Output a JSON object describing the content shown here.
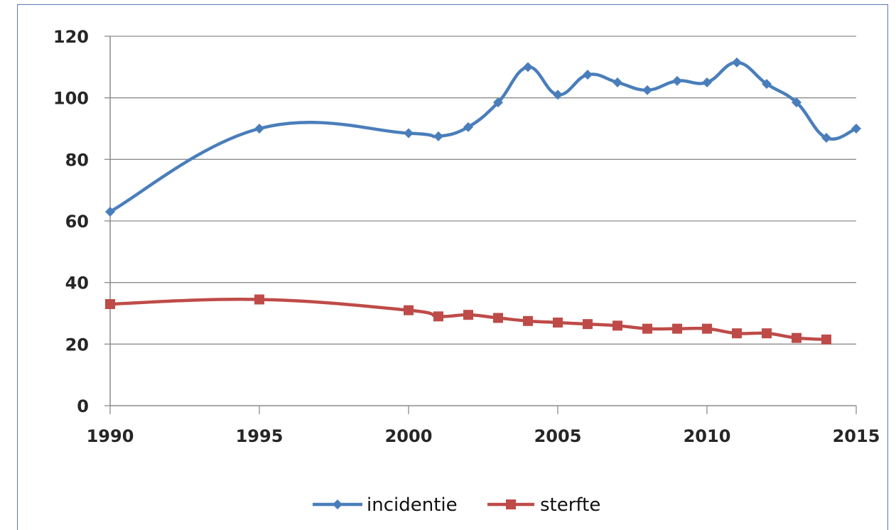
{
  "chart_data": {
    "type": "line",
    "title": "",
    "xlabel": "",
    "ylabel": "",
    "xlim": [
      1990,
      2015
    ],
    "ylim": [
      0,
      120
    ],
    "x_ticks": [
      "1990",
      "1995",
      "2000",
      "2005",
      "2010",
      "2015"
    ],
    "y_ticks": [
      "0",
      "20",
      "40",
      "60",
      "80",
      "100",
      "120"
    ],
    "grid": "horizontal",
    "legend_position": "bottom",
    "smooth": true,
    "series": [
      {
        "name": "incidentie",
        "color": "#4a7ebb",
        "marker": "diamond",
        "points": [
          {
            "x": 1990,
            "y": 63
          },
          {
            "x": 1995,
            "y": 90
          },
          {
            "x": 2000,
            "y": 88.5
          },
          {
            "x": 2001,
            "y": 87.5
          },
          {
            "x": 2002,
            "y": 90.5
          },
          {
            "x": 2003,
            "y": 98.5
          },
          {
            "x": 2004,
            "y": 110
          },
          {
            "x": 2005,
            "y": 101
          },
          {
            "x": 2006,
            "y": 107.5
          },
          {
            "x": 2007,
            "y": 105
          },
          {
            "x": 2008,
            "y": 102.5
          },
          {
            "x": 2009,
            "y": 105.5
          },
          {
            "x": 2010,
            "y": 105
          },
          {
            "x": 2011,
            "y": 111.5
          },
          {
            "x": 2012,
            "y": 104.5
          },
          {
            "x": 2013,
            "y": 98.5
          },
          {
            "x": 2014,
            "y": 87
          },
          {
            "x": 2015,
            "y": 90
          }
        ]
      },
      {
        "name": "sterfte",
        "color": "#be4b48",
        "marker": "square",
        "points": [
          {
            "x": 1990,
            "y": 33
          },
          {
            "x": 1995,
            "y": 34.5
          },
          {
            "x": 2000,
            "y": 31
          },
          {
            "x": 2001,
            "y": 29
          },
          {
            "x": 2002,
            "y": 29.5
          },
          {
            "x": 2003,
            "y": 28.5
          },
          {
            "x": 2004,
            "y": 27.5
          },
          {
            "x": 2005,
            "y": 27
          },
          {
            "x": 2006,
            "y": 26.5
          },
          {
            "x": 2007,
            "y": 26
          },
          {
            "x": 2008,
            "y": 25
          },
          {
            "x": 2009,
            "y": 25
          },
          {
            "x": 2010,
            "y": 25
          },
          {
            "x": 2011,
            "y": 23.5
          },
          {
            "x": 2012,
            "y": 23.5
          },
          {
            "x": 2013,
            "y": 22
          },
          {
            "x": 2014,
            "y": 21.5
          }
        ]
      }
    ]
  }
}
